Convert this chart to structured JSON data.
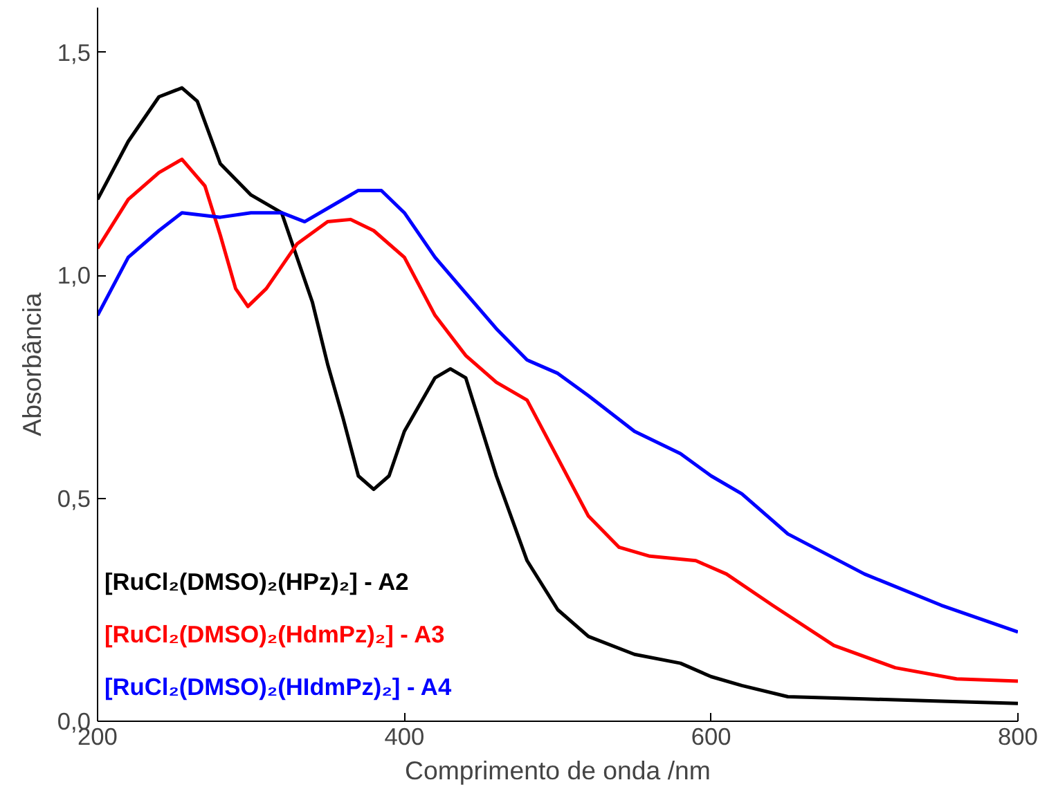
{
  "chart_data": {
    "type": "line",
    "xlabel": "Comprimento de onda /nm",
    "ylabel": "Absorbância",
    "xlim": [
      200,
      800
    ],
    "ylim": [
      0,
      1.6
    ],
    "xticks": [
      200,
      400,
      600,
      800
    ],
    "yticks": [
      {
        "value": 0,
        "label": "0,0"
      },
      {
        "value": 0.5,
        "label": "0,5"
      },
      {
        "value": 1.0,
        "label": "1,0"
      },
      {
        "value": 1.5,
        "label": "1,5"
      }
    ],
    "grid": false,
    "legend": "bottom left",
    "marker": "none",
    "line_style": "solid",
    "series": [
      {
        "name": "[RuCl₂(DMSO)₂(HPz)₂] - A2",
        "color": "#000000",
        "x": [
          200,
          220,
          240,
          255,
          265,
          280,
          300,
          320,
          340,
          350,
          360,
          370,
          380,
          390,
          400,
          420,
          430,
          440,
          460,
          480,
          500,
          520,
          550,
          580,
          600,
          620,
          650,
          700,
          750,
          800
        ],
        "values": [
          1.17,
          1.3,
          1.4,
          1.42,
          1.39,
          1.25,
          1.18,
          1.14,
          0.94,
          0.8,
          0.68,
          0.55,
          0.52,
          0.55,
          0.65,
          0.77,
          0.79,
          0.77,
          0.55,
          0.36,
          0.25,
          0.19,
          0.15,
          0.13,
          0.1,
          0.08,
          0.055,
          0.05,
          0.045,
          0.04
        ]
      },
      {
        "name": "[RuCl₂(DMSO)₂(HdmPz)₂] - A3",
        "color": "#ff0000",
        "x": [
          200,
          220,
          240,
          255,
          270,
          280,
          290,
          298,
          310,
          330,
          350,
          365,
          380,
          400,
          420,
          440,
          460,
          480,
          500,
          520,
          540,
          560,
          590,
          610,
          640,
          680,
          720,
          760,
          800
        ],
        "values": [
          1.06,
          1.17,
          1.23,
          1.26,
          1.2,
          1.09,
          0.97,
          0.93,
          0.97,
          1.07,
          1.12,
          1.125,
          1.1,
          1.04,
          0.91,
          0.82,
          0.76,
          0.72,
          0.59,
          0.46,
          0.39,
          0.37,
          0.36,
          0.33,
          0.26,
          0.17,
          0.12,
          0.095,
          0.09
        ]
      },
      {
        "name": "[RuCl₂(DMSO)₂(HIdmPz)₂] - A4",
        "color": "#0000ff",
        "x": [
          200,
          220,
          240,
          255,
          280,
          300,
          320,
          335,
          350,
          370,
          385,
          400,
          420,
          440,
          460,
          480,
          500,
          520,
          550,
          580,
          600,
          620,
          650,
          700,
          750,
          800
        ],
        "values": [
          0.91,
          1.04,
          1.1,
          1.14,
          1.13,
          1.14,
          1.14,
          1.12,
          1.15,
          1.19,
          1.19,
          1.14,
          1.04,
          0.96,
          0.88,
          0.81,
          0.78,
          0.73,
          0.65,
          0.6,
          0.55,
          0.51,
          0.42,
          0.33,
          0.26,
          0.2
        ]
      }
    ]
  }
}
